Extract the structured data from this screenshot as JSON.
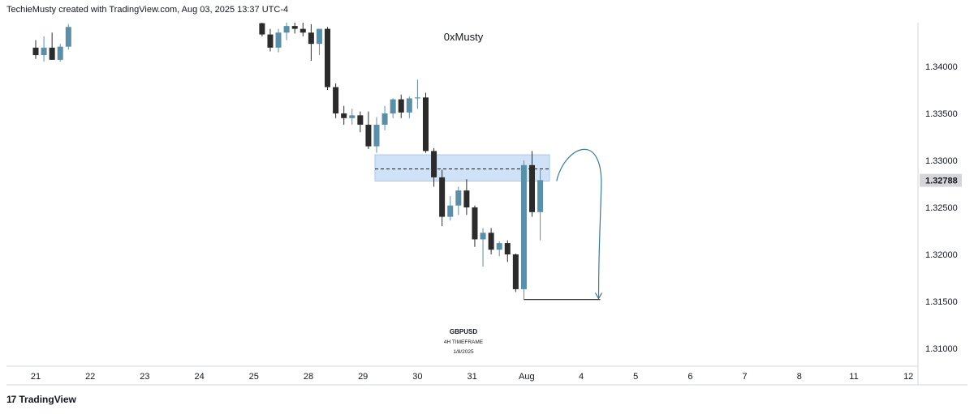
{
  "header": {
    "text": "TechieMusty created with TradingView.com, Aug 03, 2025 13:37 UTC-4"
  },
  "footer": {
    "logo_icon": "tradingview-logo-icon",
    "label": "TradingView"
  },
  "annotations": {
    "author": "0xMusty",
    "symbol": "GBPUSD",
    "timeframe": "4H TIMEFRAME",
    "date": "1/8/2025"
  },
  "colors": {
    "bull": "#5b8fa8",
    "bear": "#2b2b2b",
    "zone": "#cfe2f8",
    "zone_border": "#a9c8ee",
    "price_badge_bg": "#d6d6da",
    "arrow": "#3b7a8f"
  },
  "chart_data": {
    "type": "candlestick",
    "symbol": "GBPUSD",
    "timeframe": "4H",
    "x_ticks": [
      "21",
      "22",
      "23",
      "24",
      "25",
      "28",
      "29",
      "30",
      "31",
      "Aug",
      "4",
      "5",
      "6",
      "7",
      "8",
      "11",
      "12"
    ],
    "y_ticks": [
      1.31,
      1.315,
      1.32,
      1.325,
      1.33,
      1.335,
      1.34
    ],
    "y_tick_labels": [
      "1.31000",
      "1.31500",
      "1.32000",
      "1.32500",
      "1.33000",
      "1.33500",
      "1.34000"
    ],
    "ylim": [
      1.3052,
      1.3438
    ],
    "current_price": 1.32788,
    "current_price_label": "1.32788",
    "candles": [
      {
        "day": 0.0,
        "o": 1.342,
        "h": 1.3428,
        "l": 1.3408,
        "c": 1.3412
      },
      {
        "day": 0.15,
        "o": 1.3412,
        "h": 1.3432,
        "l": 1.3405,
        "c": 1.342
      },
      {
        "day": 0.3,
        "o": 1.342,
        "h": 1.3436,
        "l": 1.341,
        "c": 1.3407
      },
      {
        "day": 0.45,
        "o": 1.3407,
        "h": 1.3424,
        "l": 1.3405,
        "c": 1.3421
      },
      {
        "day": 0.6,
        "o": 1.3421,
        "h": 1.3445,
        "l": 1.3418,
        "c": 1.3442
      },
      {
        "day": 4.15,
        "o": 1.3446,
        "h": 1.3452,
        "l": 1.3432,
        "c": 1.3434
      },
      {
        "day": 4.3,
        "o": 1.3434,
        "h": 1.344,
        "l": 1.3416,
        "c": 1.342
      },
      {
        "day": 4.45,
        "o": 1.342,
        "h": 1.344,
        "l": 1.3415,
        "c": 1.3436
      },
      {
        "day": 4.6,
        "o": 1.3436,
        "h": 1.3448,
        "l": 1.3428,
        "c": 1.3443
      },
      {
        "day": 4.75,
        "o": 1.3443,
        "h": 1.3455,
        "l": 1.3435,
        "c": 1.344
      },
      {
        "day": 4.9,
        "o": 1.344,
        "h": 1.345,
        "l": 1.3432,
        "c": 1.3436
      },
      {
        "day": 5.05,
        "o": 1.3436,
        "h": 1.3445,
        "l": 1.3406,
        "c": 1.3424
      },
      {
        "day": 5.2,
        "o": 1.3424,
        "h": 1.344,
        "l": 1.3412,
        "c": 1.344
      },
      {
        "day": 5.35,
        "o": 1.344,
        "h": 1.3442,
        "l": 1.3375,
        "c": 1.3378
      },
      {
        "day": 5.5,
        "o": 1.3378,
        "h": 1.3382,
        "l": 1.3345,
        "c": 1.335
      },
      {
        "day": 5.65,
        "o": 1.335,
        "h": 1.3358,
        "l": 1.3338,
        "c": 1.3345
      },
      {
        "day": 5.8,
        "o": 1.3345,
        "h": 1.3355,
        "l": 1.3338,
        "c": 1.3348
      },
      {
        "day": 5.95,
        "o": 1.3348,
        "h": 1.3352,
        "l": 1.333,
        "c": 1.3338
      },
      {
        "day": 6.1,
        "o": 1.3338,
        "h": 1.3352,
        "l": 1.3312,
        "c": 1.3315
      },
      {
        "day": 6.25,
        "o": 1.3315,
        "h": 1.3346,
        "l": 1.3308,
        "c": 1.3338
      },
      {
        "day": 6.4,
        "o": 1.3338,
        "h": 1.3358,
        "l": 1.3332,
        "c": 1.335
      },
      {
        "day": 6.55,
        "o": 1.335,
        "h": 1.3366,
        "l": 1.3345,
        "c": 1.3365
      },
      {
        "day": 6.7,
        "o": 1.3365,
        "h": 1.337,
        "l": 1.3345,
        "c": 1.3351
      },
      {
        "day": 6.85,
        "o": 1.3351,
        "h": 1.3368,
        "l": 1.3345,
        "c": 1.3366
      },
      {
        "day": 7.0,
        "o": 1.3366,
        "h": 1.3386,
        "l": 1.3355,
        "c": 1.3367
      },
      {
        "day": 7.15,
        "o": 1.3367,
        "h": 1.3372,
        "l": 1.3308,
        "c": 1.331
      },
      {
        "day": 7.3,
        "o": 1.331,
        "h": 1.3313,
        "l": 1.3272,
        "c": 1.3282
      },
      {
        "day": 7.45,
        "o": 1.3282,
        "h": 1.329,
        "l": 1.323,
        "c": 1.324
      },
      {
        "day": 7.6,
        "o": 1.324,
        "h": 1.3262,
        "l": 1.3236,
        "c": 1.3252
      },
      {
        "day": 7.75,
        "o": 1.3252,
        "h": 1.3272,
        "l": 1.3242,
        "c": 1.3268
      },
      {
        "day": 7.9,
        "o": 1.3268,
        "h": 1.328,
        "l": 1.3242,
        "c": 1.325
      },
      {
        "day": 8.05,
        "o": 1.325,
        "h": 1.3252,
        "l": 1.3208,
        "c": 1.3216
      },
      {
        "day": 8.2,
        "o": 1.3216,
        "h": 1.3228,
        "l": 1.3187,
        "c": 1.3223
      },
      {
        "day": 8.35,
        "o": 1.3223,
        "h": 1.3228,
        "l": 1.32,
        "c": 1.3205
      },
      {
        "day": 8.5,
        "o": 1.3205,
        "h": 1.3214,
        "l": 1.3198,
        "c": 1.3212
      },
      {
        "day": 8.65,
        "o": 1.3212,
        "h": 1.3215,
        "l": 1.3192,
        "c": 1.32
      },
      {
        "day": 8.8,
        "o": 1.32,
        "h": 1.3201,
        "l": 1.316,
        "c": 1.3163
      },
      {
        "day": 8.95,
        "o": 1.3163,
        "h": 1.33,
        "l": 1.3152,
        "c": 1.3295
      },
      {
        "day": 9.1,
        "o": 1.3295,
        "h": 1.331,
        "l": 1.324,
        "c": 1.3245
      },
      {
        "day": 9.25,
        "o": 1.3245,
        "h": 1.329,
        "l": 1.3215,
        "c": 1.3279
      }
    ],
    "zone": {
      "top": 1.3306,
      "bottom": 1.3278,
      "day_start": 6.22,
      "day_end": 9.42,
      "midline": 1.3291
    },
    "target_line": {
      "price": 1.3152,
      "day_start": 8.95,
      "day_end": 10.35
    },
    "projection_arrow": {
      "start_day": 9.55,
      "start_price": 1.3278,
      "peak_day": 10.25,
      "peak_price": 1.3298,
      "end_day": 10.32,
      "end_price": 1.3153
    }
  }
}
